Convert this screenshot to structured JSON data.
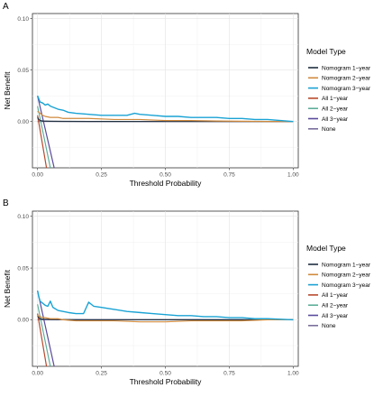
{
  "chart_data": [
    {
      "type": "line",
      "panel_label": "A",
      "xlabel": "Threshold Probability",
      "ylabel": "Net Benefit",
      "xlim": [
        -0.02,
        1.02
      ],
      "ylim": [
        -0.045,
        0.105
      ],
      "x_ticks": [
        0.0,
        0.25,
        0.5,
        0.75,
        1.0
      ],
      "x_tick_labels": [
        "0.00",
        "0.25",
        "0.50",
        "0.75",
        "1.00"
      ],
      "y_ticks": [
        0.0,
        0.05,
        0.1
      ],
      "y_tick_labels": [
        "0.00",
        "0.05",
        "0.10"
      ],
      "grid": true,
      "legend": {
        "title": "Model Type",
        "position": "right"
      },
      "series": [
        {
          "name": "Nomogram 1−year",
          "color": "#1f2f3f",
          "x": [
            0,
            0.005,
            0.01,
            0.02,
            0.05,
            0.1,
            0.2,
            0.5,
            1.0
          ],
          "y": [
            0.004,
            0.002,
            0.001,
            0.0005,
            0.0003,
            0.0002,
            0.0001,
            0.0,
            0.0
          ]
        },
        {
          "name": "Nomogram 2−year",
          "color": "#d18a3c",
          "x": [
            0,
            0.01,
            0.02,
            0.03,
            0.05,
            0.08,
            0.1,
            0.15,
            0.2,
            0.3,
            0.4,
            0.5,
            0.6,
            0.7,
            0.8,
            0.9,
            1.0
          ],
          "y": [
            0.01,
            0.008,
            0.006,
            0.005,
            0.004,
            0.004,
            0.003,
            0.003,
            0.003,
            0.002,
            0.002,
            0.001,
            0.001,
            0.0005,
            0.0003,
            0.0001,
            0.0
          ]
        },
        {
          "name": "Nomogram 3−year",
          "color": "#1aa3d4",
          "x": [
            0,
            0.005,
            0.01,
            0.02,
            0.03,
            0.04,
            0.05,
            0.06,
            0.08,
            0.1,
            0.12,
            0.15,
            0.2,
            0.25,
            0.3,
            0.35,
            0.38,
            0.4,
            0.45,
            0.5,
            0.55,
            0.6,
            0.65,
            0.7,
            0.75,
            0.8,
            0.85,
            0.9,
            0.95,
            1.0
          ],
          "y": [
            0.025,
            0.022,
            0.019,
            0.018,
            0.016,
            0.017,
            0.015,
            0.014,
            0.012,
            0.011,
            0.009,
            0.008,
            0.007,
            0.006,
            0.006,
            0.006,
            0.008,
            0.007,
            0.006,
            0.005,
            0.005,
            0.004,
            0.004,
            0.004,
            0.003,
            0.003,
            0.002,
            0.002,
            0.001,
            0.0
          ]
        },
        {
          "name": "All 1−year",
          "color": "#b84a2e",
          "x": [
            0,
            0.035
          ],
          "y": [
            0.006,
            -0.045
          ]
        },
        {
          "name": "All 2−year",
          "color": "#5faf9a",
          "x": [
            0,
            0.05
          ],
          "y": [
            0.015,
            -0.045
          ]
        },
        {
          "name": "All 3−year",
          "color": "#5a4a9c",
          "x": [
            0,
            0.065
          ],
          "y": [
            0.025,
            -0.045
          ]
        },
        {
          "name": "None",
          "color": "#7a6f9c",
          "x": [
            0,
            1.0
          ],
          "y": [
            0.0,
            0.0
          ]
        }
      ]
    },
    {
      "type": "line",
      "panel_label": "B",
      "xlabel": "Threshold Probability",
      "ylabel": "Net Benefit",
      "xlim": [
        -0.02,
        1.02
      ],
      "ylim": [
        -0.045,
        0.105
      ],
      "x_ticks": [
        0.0,
        0.25,
        0.5,
        0.75,
        1.0
      ],
      "x_tick_labels": [
        "0.00",
        "0.25",
        "0.50",
        "0.75",
        "1.00"
      ],
      "y_ticks": [
        0.0,
        0.05,
        0.1
      ],
      "y_tick_labels": [
        "0.00",
        "0.05",
        "0.10"
      ],
      "grid": true,
      "legend": {
        "title": "Model Type",
        "position": "right"
      },
      "series": [
        {
          "name": "Nomogram 1−year",
          "color": "#1f2f3f",
          "x": [
            0,
            0.005,
            0.01,
            0.02,
            0.05,
            0.1,
            0.2,
            0.5,
            1.0
          ],
          "y": [
            0.004,
            0.002,
            0.001,
            0.0005,
            0.0003,
            0.0002,
            0.0001,
            0.0,
            0.0
          ]
        },
        {
          "name": "Nomogram 2−year",
          "color": "#d18a3c",
          "x": [
            0,
            0.01,
            0.02,
            0.03,
            0.05,
            0.08,
            0.1,
            0.15,
            0.2,
            0.3,
            0.4,
            0.5,
            0.6,
            0.7,
            0.8,
            0.9,
            1.0
          ],
          "y": [
            0.004,
            0.003,
            0.002,
            0.002,
            0.001,
            0.001,
            0.0,
            -0.001,
            -0.001,
            -0.001,
            -0.002,
            -0.002,
            -0.001,
            -0.001,
            -0.001,
            0.0,
            0.0
          ]
        },
        {
          "name": "Nomogram 3−year",
          "color": "#1aa3d4",
          "x": [
            0,
            0.005,
            0.01,
            0.02,
            0.03,
            0.04,
            0.05,
            0.06,
            0.08,
            0.1,
            0.12,
            0.15,
            0.18,
            0.2,
            0.22,
            0.25,
            0.3,
            0.35,
            0.4,
            0.45,
            0.5,
            0.55,
            0.6,
            0.65,
            0.7,
            0.75,
            0.8,
            0.85,
            0.9,
            0.95,
            1.0
          ],
          "y": [
            0.028,
            0.022,
            0.018,
            0.016,
            0.014,
            0.013,
            0.018,
            0.012,
            0.009,
            0.008,
            0.007,
            0.006,
            0.006,
            0.017,
            0.013,
            0.012,
            0.01,
            0.008,
            0.007,
            0.006,
            0.005,
            0.004,
            0.004,
            0.003,
            0.003,
            0.002,
            0.002,
            0.001,
            0.001,
            0.0005,
            0.0
          ]
        },
        {
          "name": "All 1−year",
          "color": "#b84a2e",
          "x": [
            0,
            0.035
          ],
          "y": [
            0.006,
            -0.045
          ]
        },
        {
          "name": "All 2−year",
          "color": "#5faf9a",
          "x": [
            0,
            0.05
          ],
          "y": [
            0.015,
            -0.045
          ]
        },
        {
          "name": "All 3−year",
          "color": "#5a4a9c",
          "x": [
            0,
            0.065
          ],
          "y": [
            0.028,
            -0.045
          ]
        },
        {
          "name": "None",
          "color": "#7a6f9c",
          "x": [
            0,
            1.0
          ],
          "y": [
            0.0,
            0.0
          ]
        }
      ]
    }
  ]
}
